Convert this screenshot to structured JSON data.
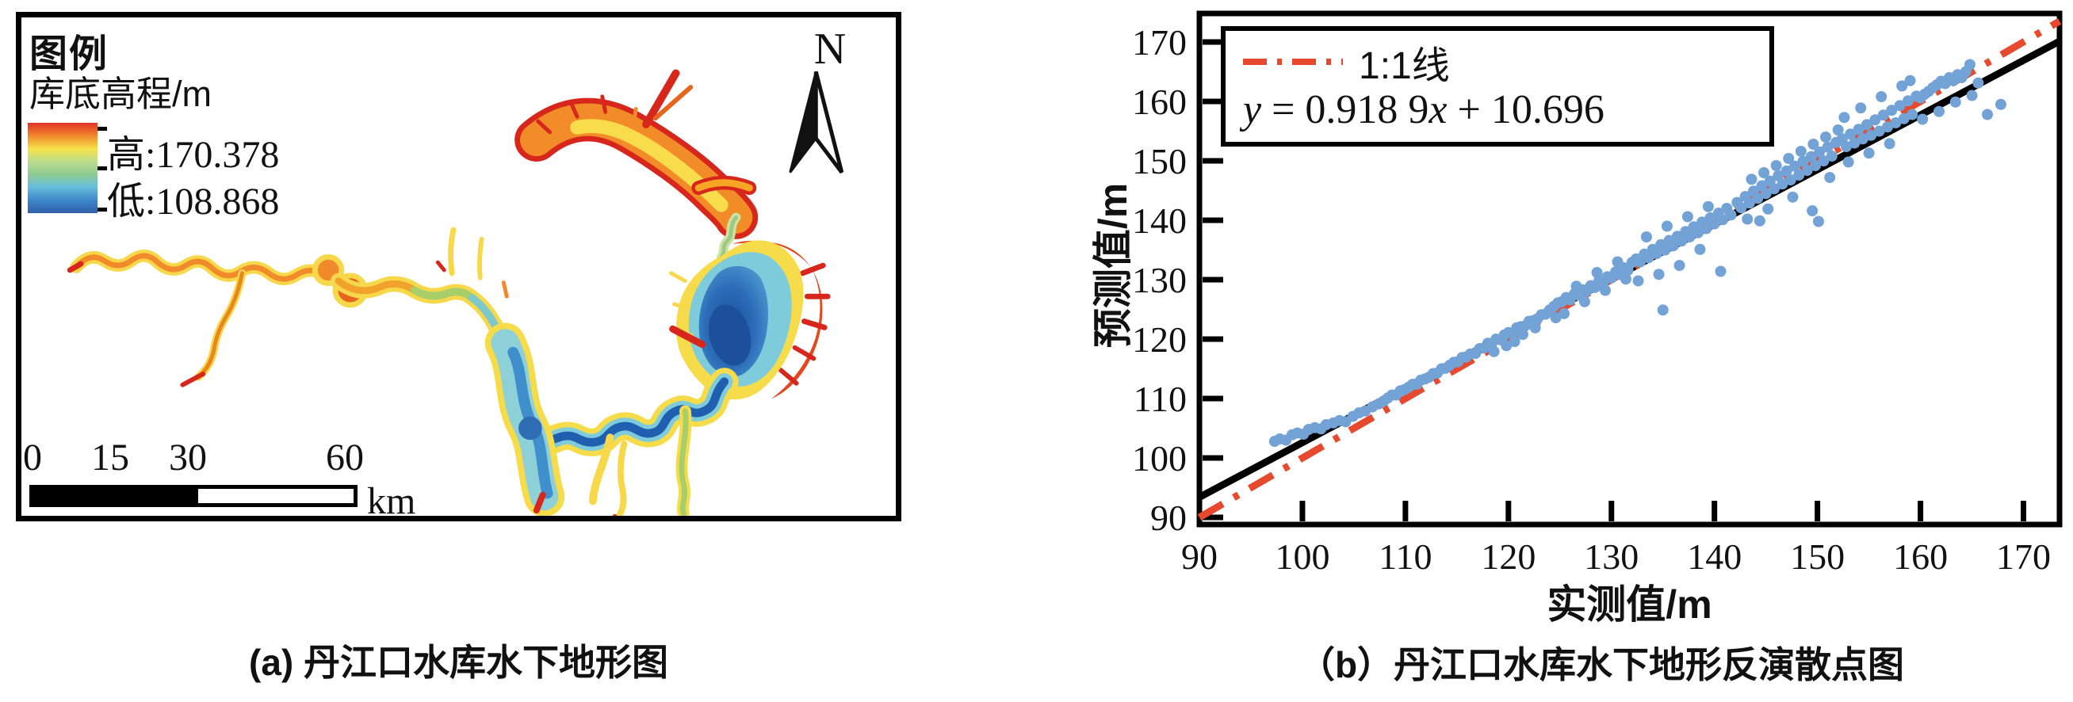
{
  "map_panel": {
    "caption": "(a) 丹江口水库水下地形图",
    "legend_title": "图例",
    "legend_layer": "库底高程/m",
    "legend_high": "高:170.378",
    "legend_low": "低:108.868",
    "elevation_high": 170.378,
    "elevation_low": 108.868,
    "north_label": "N",
    "scale_labels": [
      "0",
      "15",
      "30",
      "60"
    ],
    "scale_unit": "km",
    "colorbar_stops": [
      "#E03127",
      "#F0862B",
      "#F6E34B",
      "#BCDC8C",
      "#8FCB92",
      "#65BEDD",
      "#3E85C8",
      "#2F5FA8"
    ]
  },
  "scatter_panel": {
    "caption": "（b）丹江口水库水下地形反演散点图",
    "xlabel": "实测值/m",
    "ylabel": "预测值/m",
    "legend_line_label": "1:1线",
    "equation_parts": {
      "p1": "y",
      "p2": " = 0.918 9",
      "p3": "x",
      "p4": " + 10.696"
    }
  },
  "chart_data": {
    "type": "scatter",
    "xlabel": "实测值/m",
    "ylabel": "预测值/m",
    "xlim": [
      90,
      173.5
    ],
    "ylim": [
      88.8,
      174.8
    ],
    "xticks": [
      90,
      100,
      110,
      120,
      130,
      140,
      150,
      160,
      170
    ],
    "yticks": [
      90,
      100,
      110,
      120,
      130,
      140,
      150,
      160,
      170
    ],
    "grid": false,
    "legend_position": "top-left",
    "point_color": "#73A3D6",
    "point_radius": 7,
    "identity_line": {
      "label": "1:1线",
      "color": "#E6492D",
      "style": "dash-dot",
      "from": [
        90,
        90
      ],
      "to": [
        173.5,
        173.5
      ]
    },
    "regression": {
      "equation": "y = 0.918 9x + 10.696",
      "slope": 0.9189,
      "intercept": 10.696,
      "color": "#000000"
    },
    "points": [
      [
        97.3,
        102.8
      ],
      [
        97.8,
        103.2
      ],
      [
        98.4,
        103.0
      ],
      [
        99.0,
        103.9
      ],
      [
        99.5,
        104.2
      ],
      [
        100.1,
        104.0
      ],
      [
        100.6,
        104.8
      ],
      [
        101.2,
        105.1
      ],
      [
        101.8,
        104.9
      ],
      [
        102.3,
        105.6
      ],
      [
        103.0,
        105.9
      ],
      [
        103.6,
        106.3
      ],
      [
        104.2,
        106.1
      ],
      [
        104.9,
        107.0
      ],
      [
        105.5,
        107.6
      ],
      [
        106.1,
        107.9
      ],
      [
        106.8,
        108.6
      ],
      [
        107.4,
        109.1
      ],
      [
        107.9,
        109.6
      ],
      [
        108.3,
        110.1
      ],
      [
        108.7,
        110.6
      ],
      [
        109.1,
        110.6
      ],
      [
        109.5,
        111.3
      ],
      [
        109.9,
        111.5
      ],
      [
        110.3,
        111.9
      ],
      [
        110.7,
        112.4
      ],
      [
        111.1,
        112.4
      ],
      [
        111.5,
        113.1
      ],
      [
        111.9,
        113.3
      ],
      [
        112.3,
        113.6
      ],
      [
        112.7,
        114.2
      ],
      [
        113.1,
        114.3
      ],
      [
        113.5,
        115.0
      ],
      [
        113.9,
        115.1
      ],
      [
        114.3,
        115.6
      ],
      [
        114.7,
        116.1
      ],
      [
        115.1,
        116.2
      ],
      [
        115.5,
        116.9
      ],
      [
        115.9,
        117.0
      ],
      [
        116.3,
        117.5
      ],
      [
        116.8,
        117.6
      ],
      [
        117.2,
        118.4
      ],
      [
        117.6,
        118.5
      ],
      [
        118.0,
        119.3
      ],
      [
        118.4,
        119.3
      ],
      [
        118.8,
        120.0
      ],
      [
        119.2,
        119.9
      ],
      [
        119.6,
        120.7
      ],
      [
        120.0,
        121.1
      ],
      [
        120.4,
        121.0
      ],
      [
        120.8,
        121.9
      ],
      [
        121.2,
        122.1
      ],
      [
        121.6,
        122.2
      ],
      [
        122.0,
        123.0
      ],
      [
        122.4,
        123.1
      ],
      [
        122.8,
        123.4
      ],
      [
        123.2,
        124.1
      ],
      [
        123.6,
        124.2
      ],
      [
        124.0,
        124.9
      ],
      [
        119.8,
        118.9
      ],
      [
        121.4,
        120.8
      ],
      [
        118.6,
        117.9
      ],
      [
        122.6,
        121.9
      ],
      [
        120.6,
        119.6
      ],
      [
        124.4,
        125.5
      ],
      [
        124.8,
        126.1
      ],
      [
        125.2,
        126.3
      ],
      [
        125.6,
        127.0
      ],
      [
        126.0,
        126.6
      ],
      [
        126.4,
        127.6
      ],
      [
        126.8,
        127.4
      ],
      [
        127.2,
        128.3
      ],
      [
        127.6,
        128.1
      ],
      [
        128.0,
        129.0
      ],
      [
        128.4,
        128.7
      ],
      [
        128.8,
        129.9
      ],
      [
        129.2,
        129.5
      ],
      [
        129.6,
        130.5
      ],
      [
        130.0,
        130.3
      ],
      [
        130.4,
        131.3
      ],
      [
        130.8,
        130.9
      ],
      [
        131.2,
        132.0
      ],
      [
        131.6,
        131.6
      ],
      [
        132.0,
        132.9
      ],
      [
        125.4,
        124.3
      ],
      [
        127.4,
        126.3
      ],
      [
        129.4,
        128.2
      ],
      [
        131.4,
        130.1
      ],
      [
        126.6,
        128.9
      ],
      [
        128.6,
        131.2
      ],
      [
        130.6,
        133.0
      ],
      [
        124.6,
        123.6
      ],
      [
        132.4,
        133.5
      ],
      [
        132.8,
        133.0
      ],
      [
        133.2,
        134.3
      ],
      [
        133.6,
        133.7
      ],
      [
        134.0,
        135.1
      ],
      [
        134.4,
        134.4
      ],
      [
        134.8,
        135.9
      ],
      [
        135.2,
        135.0
      ],
      [
        135.6,
        136.6
      ],
      [
        136.0,
        135.7
      ],
      [
        136.4,
        137.3
      ],
      [
        136.8,
        136.5
      ],
      [
        137.2,
        138.1
      ],
      [
        137.6,
        137.2
      ],
      [
        138.0,
        138.9
      ],
      [
        138.4,
        137.9
      ],
      [
        138.8,
        139.7
      ],
      [
        139.2,
        138.6
      ],
      [
        139.6,
        140.4
      ],
      [
        140.0,
        139.4
      ],
      [
        140.4,
        141.2
      ],
      [
        140.8,
        140.1
      ],
      [
        141.2,
        142.0
      ],
      [
        141.6,
        140.9
      ],
      [
        133.4,
        137.2
      ],
      [
        135.4,
        139.0
      ],
      [
        137.4,
        140.6
      ],
      [
        139.4,
        142.3
      ],
      [
        134.6,
        130.9
      ],
      [
        136.6,
        132.4
      ],
      [
        135.0,
        124.9
      ],
      [
        140.6,
        131.4
      ],
      [
        138.6,
        135.1
      ],
      [
        132.6,
        129.8
      ],
      [
        142.2,
        143.0
      ],
      [
        142.6,
        142.1
      ],
      [
        143.0,
        144.0
      ],
      [
        143.4,
        142.9
      ],
      [
        143.8,
        144.9
      ],
      [
        144.2,
        143.7
      ],
      [
        144.6,
        145.8
      ],
      [
        145.0,
        144.5
      ],
      [
        145.4,
        146.6
      ],
      [
        145.8,
        145.3
      ],
      [
        146.2,
        147.5
      ],
      [
        146.6,
        146.1
      ],
      [
        147.0,
        148.3
      ],
      [
        147.4,
        146.8
      ],
      [
        147.8,
        149.1
      ],
      [
        148.2,
        147.6
      ],
      [
        148.6,
        149.9
      ],
      [
        149.0,
        148.4
      ],
      [
        149.4,
        150.7
      ],
      [
        149.8,
        149.2
      ],
      [
        150.2,
        151.5
      ],
      [
        150.6,
        150.0
      ],
      [
        151.0,
        152.3
      ],
      [
        151.4,
        150.8
      ],
      [
        151.8,
        153.1
      ],
      [
        143.6,
        146.9
      ],
      [
        144.8,
        148.0
      ],
      [
        146.0,
        149.2
      ],
      [
        147.2,
        150.4
      ],
      [
        148.4,
        151.6
      ],
      [
        149.6,
        152.8
      ],
      [
        150.8,
        154.0
      ],
      [
        152.0,
        155.2
      ],
      [
        143.2,
        140.2
      ],
      [
        145.2,
        141.9
      ],
      [
        147.6,
        143.9
      ],
      [
        149.5,
        141.6
      ],
      [
        151.2,
        147.2
      ],
      [
        144.4,
        139.9
      ],
      [
        150.1,
        139.8
      ],
      [
        152.4,
        153.7
      ],
      [
        152.8,
        152.4
      ],
      [
        153.2,
        154.5
      ],
      [
        153.6,
        153.0
      ],
      [
        154.0,
        155.3
      ],
      [
        154.4,
        153.7
      ],
      [
        154.8,
        156.1
      ],
      [
        155.2,
        154.3
      ],
      [
        155.6,
        156.9
      ],
      [
        156.0,
        155.0
      ],
      [
        156.4,
        157.7
      ],
      [
        156.8,
        155.7
      ],
      [
        157.2,
        158.5
      ],
      [
        157.6,
        156.4
      ],
      [
        158.0,
        159.3
      ],
      [
        158.4,
        157.1
      ],
      [
        158.8,
        160.1
      ],
      [
        159.2,
        157.8
      ],
      [
        159.6,
        160.9
      ],
      [
        153.0,
        149.8
      ],
      [
        155.0,
        151.3
      ],
      [
        157.0,
        152.9
      ],
      [
        154.2,
        158.9
      ],
      [
        156.2,
        160.8
      ],
      [
        158.2,
        162.6
      ],
      [
        152.6,
        157.3
      ],
      [
        159.0,
        163.5
      ],
      [
        160.0,
        160.6
      ],
      [
        160.4,
        161.2
      ],
      [
        160.8,
        161.7
      ],
      [
        161.2,
        162.3
      ],
      [
        161.6,
        162.8
      ],
      [
        162.0,
        163.4
      ],
      [
        162.4,
        163.0
      ],
      [
        162.8,
        164.0
      ],
      [
        163.2,
        163.5
      ],
      [
        163.6,
        164.5
      ],
      [
        164.0,
        164.0
      ],
      [
        164.4,
        165.0
      ],
      [
        160.2,
        157.0
      ],
      [
        161.8,
        158.3
      ],
      [
        163.4,
        159.9
      ],
      [
        165.0,
        161.0
      ],
      [
        166.5,
        157.8
      ],
      [
        167.8,
        159.5
      ],
      [
        164.8,
        166.2
      ],
      [
        165.6,
        163.1
      ]
    ]
  }
}
